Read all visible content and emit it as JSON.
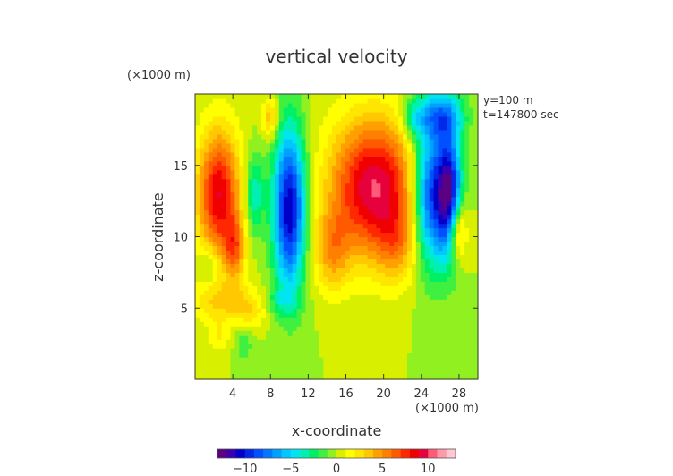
{
  "chart_data": {
    "type": "heatmap",
    "title": "vertical velocity",
    "xlabel": "x-coordinate",
    "ylabel": "z-coordinate",
    "x_unit": "(×1000 m)",
    "y_unit": "(×1000 m)",
    "info": [
      "y=100 m",
      "t=147800 sec"
    ],
    "xlim": [
      0,
      30
    ],
    "ylim": [
      0,
      20
    ],
    "xticks": [
      4,
      8,
      12,
      16,
      20,
      24,
      28
    ],
    "yticks": [
      5,
      10,
      15
    ],
    "colorbar": {
      "range": [
        -13,
        13
      ],
      "ticks": [
        -10,
        -5,
        0,
        5,
        10
      ],
      "colors": [
        "#5a0080",
        "#3a00b0",
        "#0000c8",
        "#0028e6",
        "#0050ff",
        "#0078ff",
        "#00a0ff",
        "#00c8ff",
        "#00e6f0",
        "#00f0b4",
        "#00f064",
        "#40f040",
        "#90f020",
        "#d8f000",
        "#ffff00",
        "#ffe600",
        "#ffc800",
        "#ffa000",
        "#ff8000",
        "#ff5a00",
        "#ff2800",
        "#f00000",
        "#e6003c",
        "#ff5a78",
        "#ff9aaa",
        "#ffc8d2"
      ]
    },
    "field": {
      "background": 0,
      "features": [
        {
          "x": 2.5,
          "z": 13,
          "sx": 1.6,
          "sz": 3.2,
          "w": 9
        },
        {
          "x": 4.2,
          "z": 9.2,
          "sx": 0.8,
          "sz": 1.6,
          "w": 5
        },
        {
          "x": 8,
          "z": 18.3,
          "sx": 0.6,
          "sz": 1.0,
          "w": 4
        },
        {
          "x": 10,
          "z": 12,
          "sx": 1.2,
          "sz": 4.0,
          "w": -11
        },
        {
          "x": 6.3,
          "z": 13,
          "sx": 0.7,
          "sz": 2.0,
          "w": -4
        },
        {
          "x": 19,
          "z": 13.5,
          "sx": 3.3,
          "sz": 3.4,
          "w": 10
        },
        {
          "x": 14.5,
          "z": 9,
          "sx": 1.4,
          "sz": 2.0,
          "w": 4
        },
        {
          "x": 21.5,
          "z": 9.5,
          "sx": 1.6,
          "sz": 2.0,
          "w": 3
        },
        {
          "x": 25,
          "z": 13,
          "sx": 1.4,
          "sz": 3.5,
          "w": -10
        },
        {
          "x": 27,
          "z": 13,
          "sx": 0.9,
          "sz": 3.0,
          "w": -10
        },
        {
          "x": 26,
          "z": 18.5,
          "sx": 1.8,
          "sz": 1.2,
          "w": -6
        },
        {
          "x": 23,
          "z": 18.3,
          "sx": 0.8,
          "sz": 1.0,
          "w": -3
        },
        {
          "x": 27.8,
          "z": 10.5,
          "sx": 0.7,
          "sz": 1.5,
          "w": 6
        },
        {
          "x": 3,
          "z": 5.5,
          "sx": 2.5,
          "sz": 1.0,
          "w": 3
        },
        {
          "x": 6,
          "z": 4.8,
          "sx": 1.2,
          "sz": 0.8,
          "w": 2
        },
        {
          "x": 5.2,
          "z": 2.5,
          "sx": 0.6,
          "sz": 0.8,
          "w": -2
        },
        {
          "x": 1.5,
          "z": 8,
          "sx": 0.8,
          "sz": 1.0,
          "w": -2
        },
        {
          "x": 2.5,
          "z": 3,
          "sx": 0.8,
          "sz": 0.8,
          "w": 2
        },
        {
          "x": 9,
          "z": 5.5,
          "sx": 1.2,
          "sz": 0.7,
          "w": -2
        }
      ]
    }
  }
}
